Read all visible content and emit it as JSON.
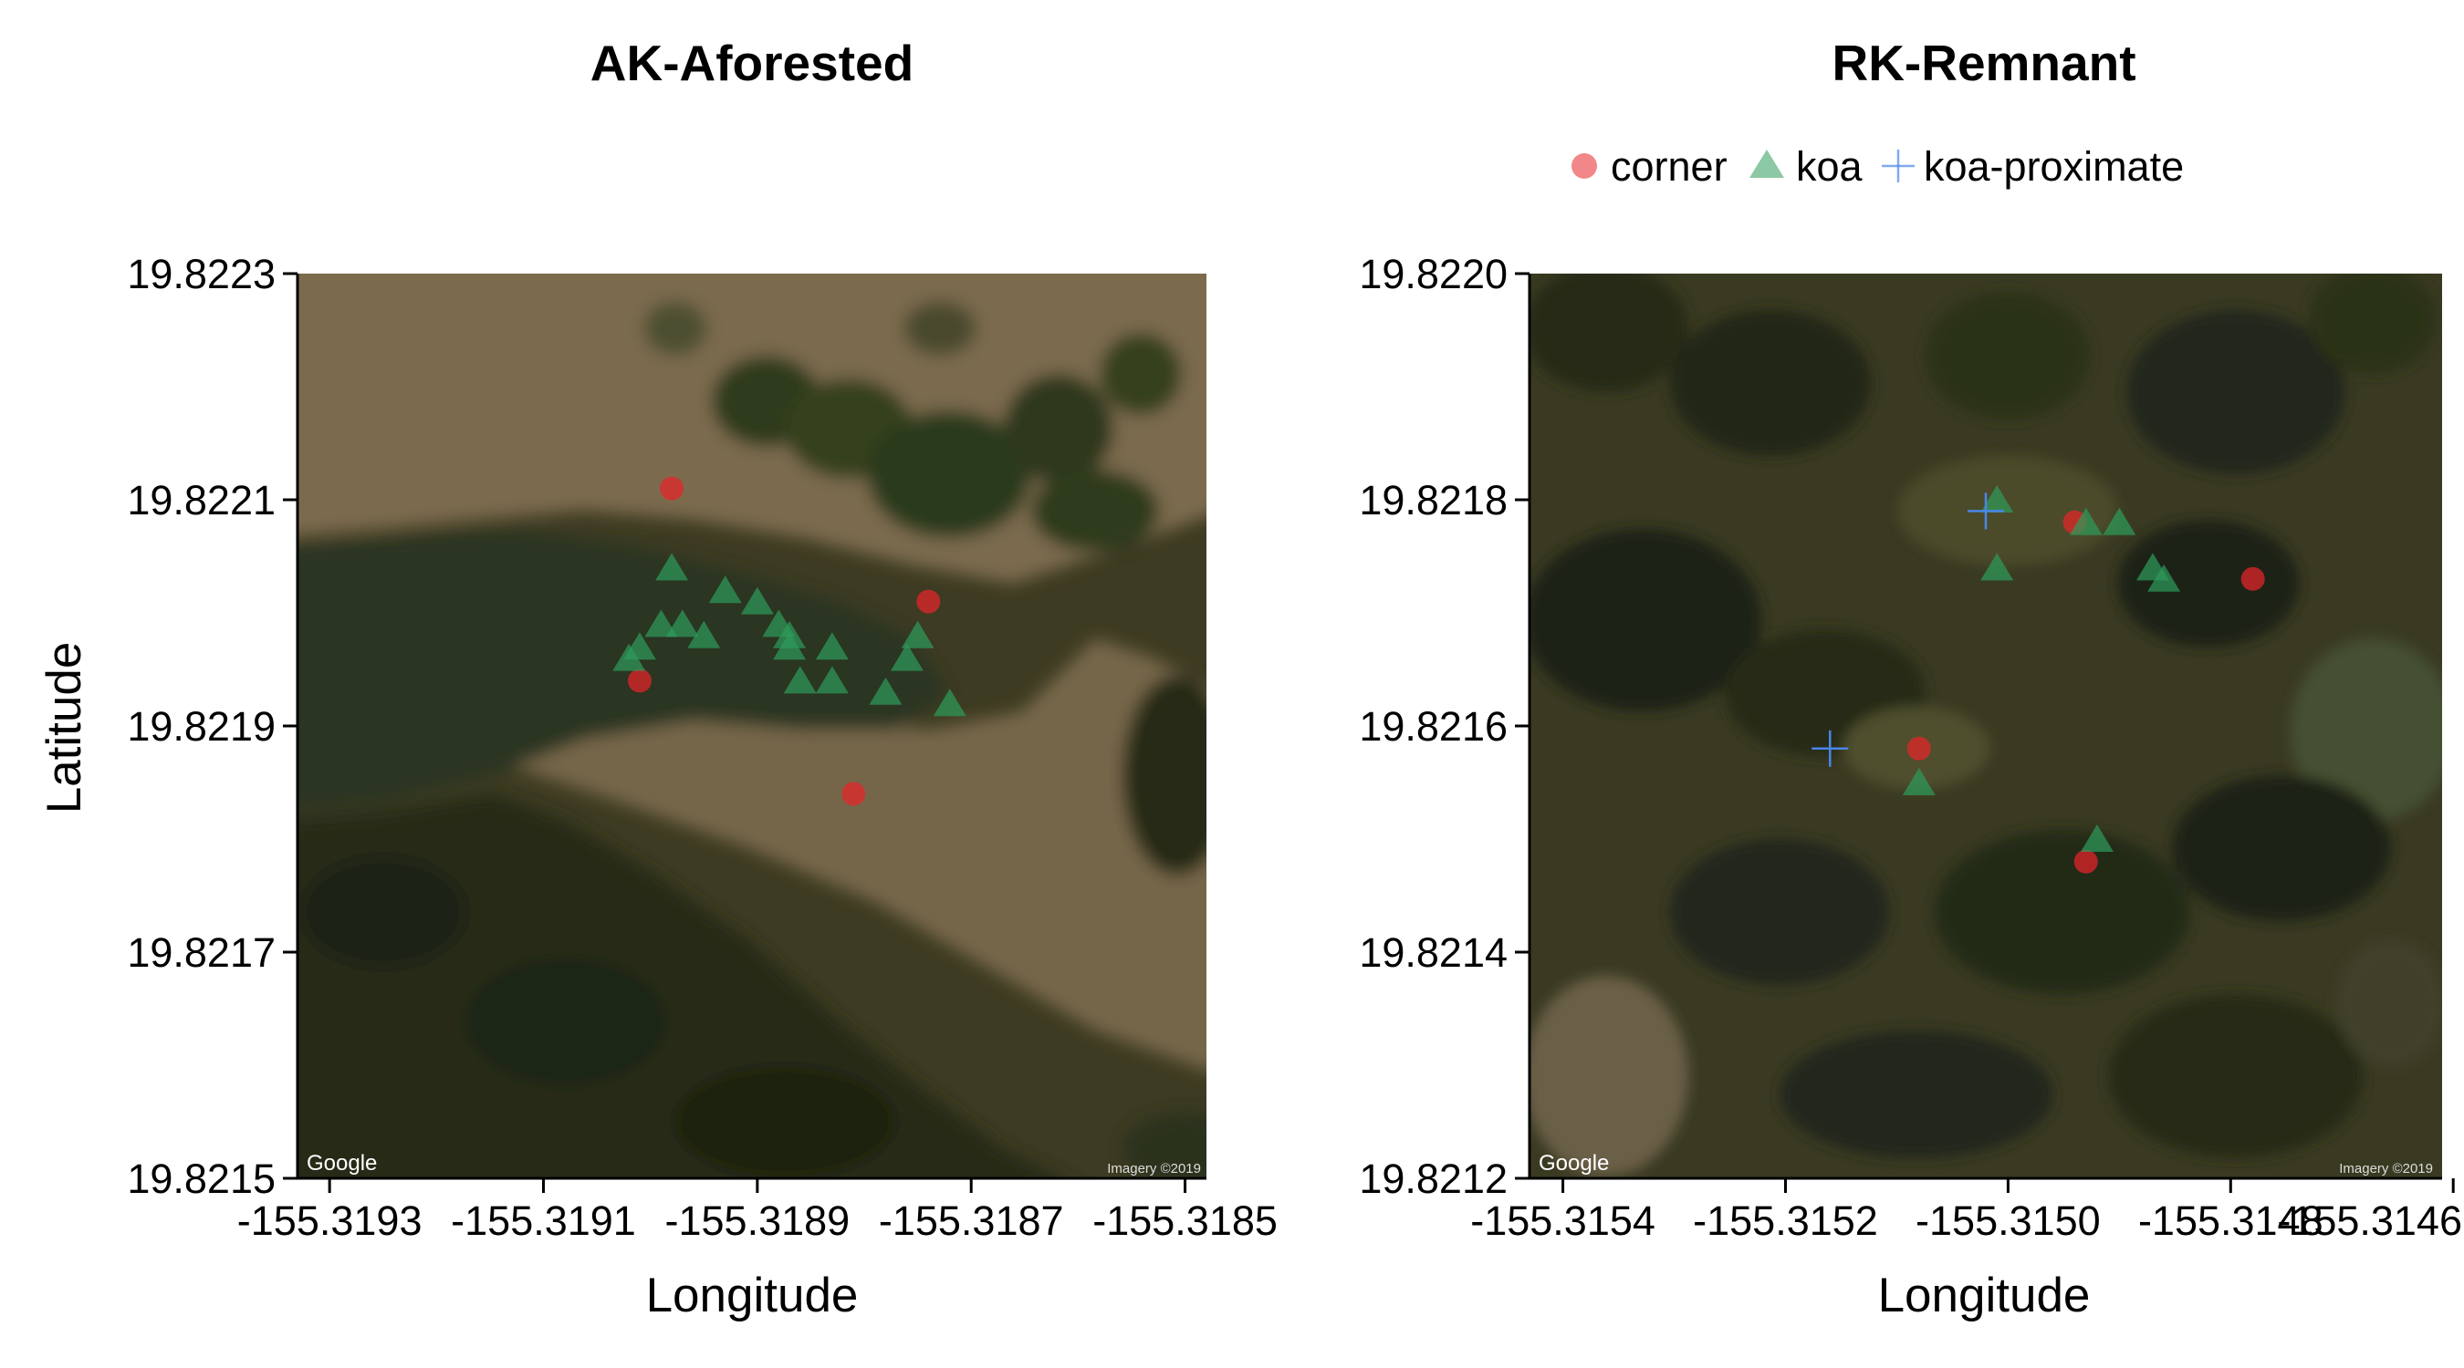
{
  "colors": {
    "corner": "#e8242a",
    "koa": "#2e9a5a",
    "koa_proximate": "#4a86e8"
  },
  "legend": {
    "placement": "top",
    "items": [
      {
        "key": "corner",
        "label": "corner",
        "shape": "circle"
      },
      {
        "key": "koa",
        "label": "koa",
        "shape": "triangle"
      },
      {
        "key": "koa_proximate",
        "label": "koa-proximate",
        "shape": "cross"
      }
    ]
  },
  "map_credit": {
    "google": "Google",
    "imagery": "Imagery ©2019"
  },
  "chart_data": [
    {
      "type": "scatter",
      "title": "AK-Aforested",
      "xlabel": "Longitude",
      "ylabel": "Latitude",
      "xlim": [
        -155.31933,
        -155.31848
      ],
      "ylim": [
        19.8215,
        19.8223
      ],
      "xticks": [
        -155.3193,
        -155.3191,
        -155.3189,
        -155.3187,
        -155.3185
      ],
      "xtick_labels": [
        "-155.3193",
        "-155.3191",
        "-155.3189",
        "-155.3187",
        "-155.3185"
      ],
      "yticks": [
        19.8215,
        19.8217,
        19.8219,
        19.8221,
        19.8223
      ],
      "ytick_labels": [
        "19.8215",
        "19.8217",
        "19.8219",
        "19.8221",
        "19.8223"
      ],
      "background": "aerial-afforested",
      "grid": false,
      "series": [
        {
          "name": "corner",
          "points": [
            [
              -155.31898,
              19.82211
            ],
            [
              -155.31901,
              19.82194
            ],
            [
              -155.31874,
              19.82201
            ],
            [
              -155.31881,
              19.82184
            ]
          ]
        },
        {
          "name": "koa",
          "points": [
            [
              -155.31902,
              19.82196
            ],
            [
              -155.31901,
              19.82197
            ],
            [
              -155.31898,
              19.82204
            ],
            [
              -155.31899,
              19.82199
            ],
            [
              -155.31897,
              19.82199
            ],
            [
              -155.31895,
              19.82198
            ],
            [
              -155.31893,
              19.82202
            ],
            [
              -155.3189,
              19.82201
            ],
            [
              -155.31888,
              19.82199
            ],
            [
              -155.31887,
              19.82198
            ],
            [
              -155.31887,
              19.82197
            ],
            [
              -155.31886,
              19.82194
            ],
            [
              -155.31883,
              19.82197
            ],
            [
              -155.31883,
              19.82194
            ],
            [
              -155.31878,
              19.82193
            ],
            [
              -155.31876,
              19.82196
            ],
            [
              -155.31875,
              19.82198
            ],
            [
              -155.31872,
              19.82192
            ]
          ]
        }
      ]
    },
    {
      "type": "scatter",
      "title": "RK-Remnant",
      "xlabel": "Longitude",
      "ylabel": "",
      "xlim": [
        -155.31543,
        -155.31461
      ],
      "ylim": [
        19.8212,
        19.822
      ],
      "xticks": [
        -155.3154,
        -155.3152,
        -155.315,
        -155.3148,
        -155.3146
      ],
      "xtick_labels": [
        "-155.3154",
        "-155.3152",
        "-155.3150",
        "-155.3148",
        "-155.3146"
      ],
      "yticks": [
        19.8212,
        19.8214,
        19.8216,
        19.8218,
        19.822
      ],
      "ytick_labels": [
        "19.8212",
        "19.8214",
        "19.8216",
        "19.8218",
        "19.8220"
      ],
      "background": "aerial-remnant",
      "grid": false,
      "series": [
        {
          "name": "corner",
          "points": [
            [
              -155.31494,
              19.82178
            ],
            [
              -155.31478,
              19.82173
            ],
            [
              -155.31508,
              19.82158
            ],
            [
              -155.31493,
              19.82148
            ]
          ]
        },
        {
          "name": "koa",
          "points": [
            [
              -155.31501,
              19.8218
            ],
            [
              -155.31493,
              19.82178
            ],
            [
              -155.3149,
              19.82178
            ],
            [
              -155.31487,
              19.82174
            ],
            [
              -155.31486,
              19.82173
            ],
            [
              -155.31501,
              19.82174
            ],
            [
              -155.31508,
              19.82155
            ],
            [
              -155.31492,
              19.8215
            ]
          ]
        },
        {
          "name": "koa-proximate",
          "points": [
            [
              -155.31502,
              19.82179
            ],
            [
              -155.31516,
              19.82158
            ]
          ]
        }
      ]
    }
  ]
}
